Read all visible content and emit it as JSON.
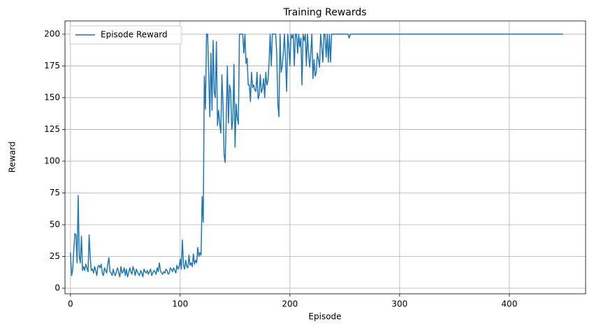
{
  "chart_data": {
    "type": "line",
    "title": "Training Rewards",
    "x_label": "Episode",
    "y_label": "Reward",
    "x": [
      0,
      1,
      2,
      3,
      4,
      5,
      6,
      7,
      8,
      9,
      10,
      11,
      12,
      13,
      14,
      15,
      16,
      17,
      18,
      19,
      20,
      21,
      22,
      23,
      24,
      25,
      26,
      27,
      28,
      29,
      30,
      31,
      32,
      33,
      34,
      35,
      36,
      37,
      38,
      39,
      40,
      41,
      42,
      43,
      44,
      45,
      46,
      47,
      48,
      49,
      50,
      51,
      52,
      53,
      54,
      55,
      56,
      57,
      58,
      59,
      60,
      61,
      62,
      63,
      64,
      65,
      66,
      67,
      68,
      69,
      70,
      71,
      72,
      73,
      74,
      75,
      76,
      77,
      78,
      79,
      80,
      81,
      82,
      83,
      84,
      85,
      86,
      87,
      88,
      89,
      90,
      91,
      92,
      93,
      94,
      95,
      96,
      97,
      98,
      99,
      100,
      101,
      102,
      103,
      104,
      105,
      106,
      107,
      108,
      109,
      110,
      111,
      112,
      113,
      114,
      115,
      116,
      117,
      118,
      119,
      120,
      121,
      122,
      123,
      124,
      125,
      126,
      127,
      128,
      129,
      130,
      131,
      132,
      133,
      134,
      135,
      136,
      137,
      138,
      139,
      140,
      141,
      142,
      143,
      144,
      145,
      146,
      147,
      148,
      149,
      150,
      151,
      152,
      153,
      154,
      155,
      156,
      157,
      158,
      159,
      160,
      161,
      162,
      163,
      164,
      165,
      166,
      167,
      168,
      169,
      170,
      171,
      172,
      173,
      174,
      175,
      176,
      177,
      178,
      179,
      180,
      181,
      182,
      183,
      184,
      185,
      186,
      187,
      188,
      189,
      190,
      191,
      192,
      193,
      194,
      195,
      196,
      197,
      198,
      199,
      200,
      201,
      202,
      203,
      204,
      205,
      206,
      207,
      208,
      209,
      210,
      211,
      212,
      213,
      214,
      215,
      216,
      217,
      218,
      219,
      220,
      221,
      222,
      223,
      224,
      225,
      226,
      227,
      228,
      229,
      230,
      231,
      232,
      233,
      234,
      235,
      236,
      237,
      238,
      239,
      240,
      241,
      242,
      243,
      244,
      245,
      246,
      247,
      248,
      249,
      250,
      251,
      252,
      253,
      254,
      255,
      449
    ],
    "series": [
      {
        "name": "Episode Reward",
        "color": "#1f77b4",
        "values": [
          28,
          10,
          14,
          30,
          43,
          42,
          20,
          73,
          25,
          20,
          41,
          14,
          17,
          14,
          19,
          16,
          13,
          42,
          24,
          14,
          15,
          12,
          17,
          14,
          10,
          17,
          18,
          16,
          19,
          12,
          10,
          16,
          14,
          12,
          19,
          24,
          13,
          12,
          10,
          15,
          11,
          10,
          14,
          16,
          12,
          9,
          17,
          12,
          13,
          16,
          10,
          15,
          9,
          12,
          16,
          13,
          11,
          17,
          14,
          10,
          15,
          13,
          11,
          10,
          14,
          12,
          9,
          15,
          13,
          12,
          14,
          11,
          13,
          15,
          10,
          12,
          14,
          13,
          11,
          16,
          13,
          20,
          14,
          12,
          11,
          13,
          12,
          15,
          14,
          11,
          12,
          16,
          15,
          13,
          16,
          14,
          12,
          18,
          15,
          17,
          23,
          15,
          38,
          18,
          15,
          22,
          17,
          16,
          26,
          18,
          20,
          17,
          27,
          19,
          22,
          20,
          32,
          25,
          28,
          26,
          72,
          52,
          167,
          141,
          200,
          200,
          168,
          135,
          185,
          140,
          195,
          155,
          150,
          194,
          128,
          140,
          130,
          122,
          168,
          145,
          105,
          99,
          135,
          175,
          130,
          160,
          155,
          125,
          132,
          176,
          111,
          145,
          134,
          129,
          200,
          200,
          200,
          200,
          185,
          200,
          177,
          181,
          160,
          160,
          147,
          170,
          158,
          160,
          156,
          155,
          170,
          149,
          152,
          168,
          154,
          157,
          165,
          150,
          170,
          160,
          163,
          178,
          200,
          175,
          200,
          200,
          200,
          200,
          185,
          145,
          135,
          200,
          170,
          175,
          185,
          200,
          180,
          155,
          200,
          190,
          175,
          200,
          197,
          200,
          175,
          200,
          200,
          185,
          200,
          190,
          197,
          160,
          200,
          195,
          200,
          175,
          200,
          185,
          174,
          185,
          200,
          165,
          180,
          167,
          170,
          185,
          180,
          174,
          200,
          190,
          178,
          200,
          200,
          182,
          200,
          178,
          200,
          178,
          200,
          200,
          200,
          200,
          200,
          200,
          200,
          200,
          200,
          200,
          200,
          200,
          200,
          200,
          200,
          200,
          197,
          200,
          200
        ]
      }
    ],
    "xlim": [
      -5,
      469.5
    ],
    "ylim": [
      -4.4,
      210.4
    ],
    "xticks": [
      0,
      100,
      200,
      300,
      400
    ],
    "yticks": [
      0,
      25,
      50,
      75,
      100,
      125,
      150,
      175,
      200
    ],
    "grid": true,
    "legend": "upper left"
  }
}
